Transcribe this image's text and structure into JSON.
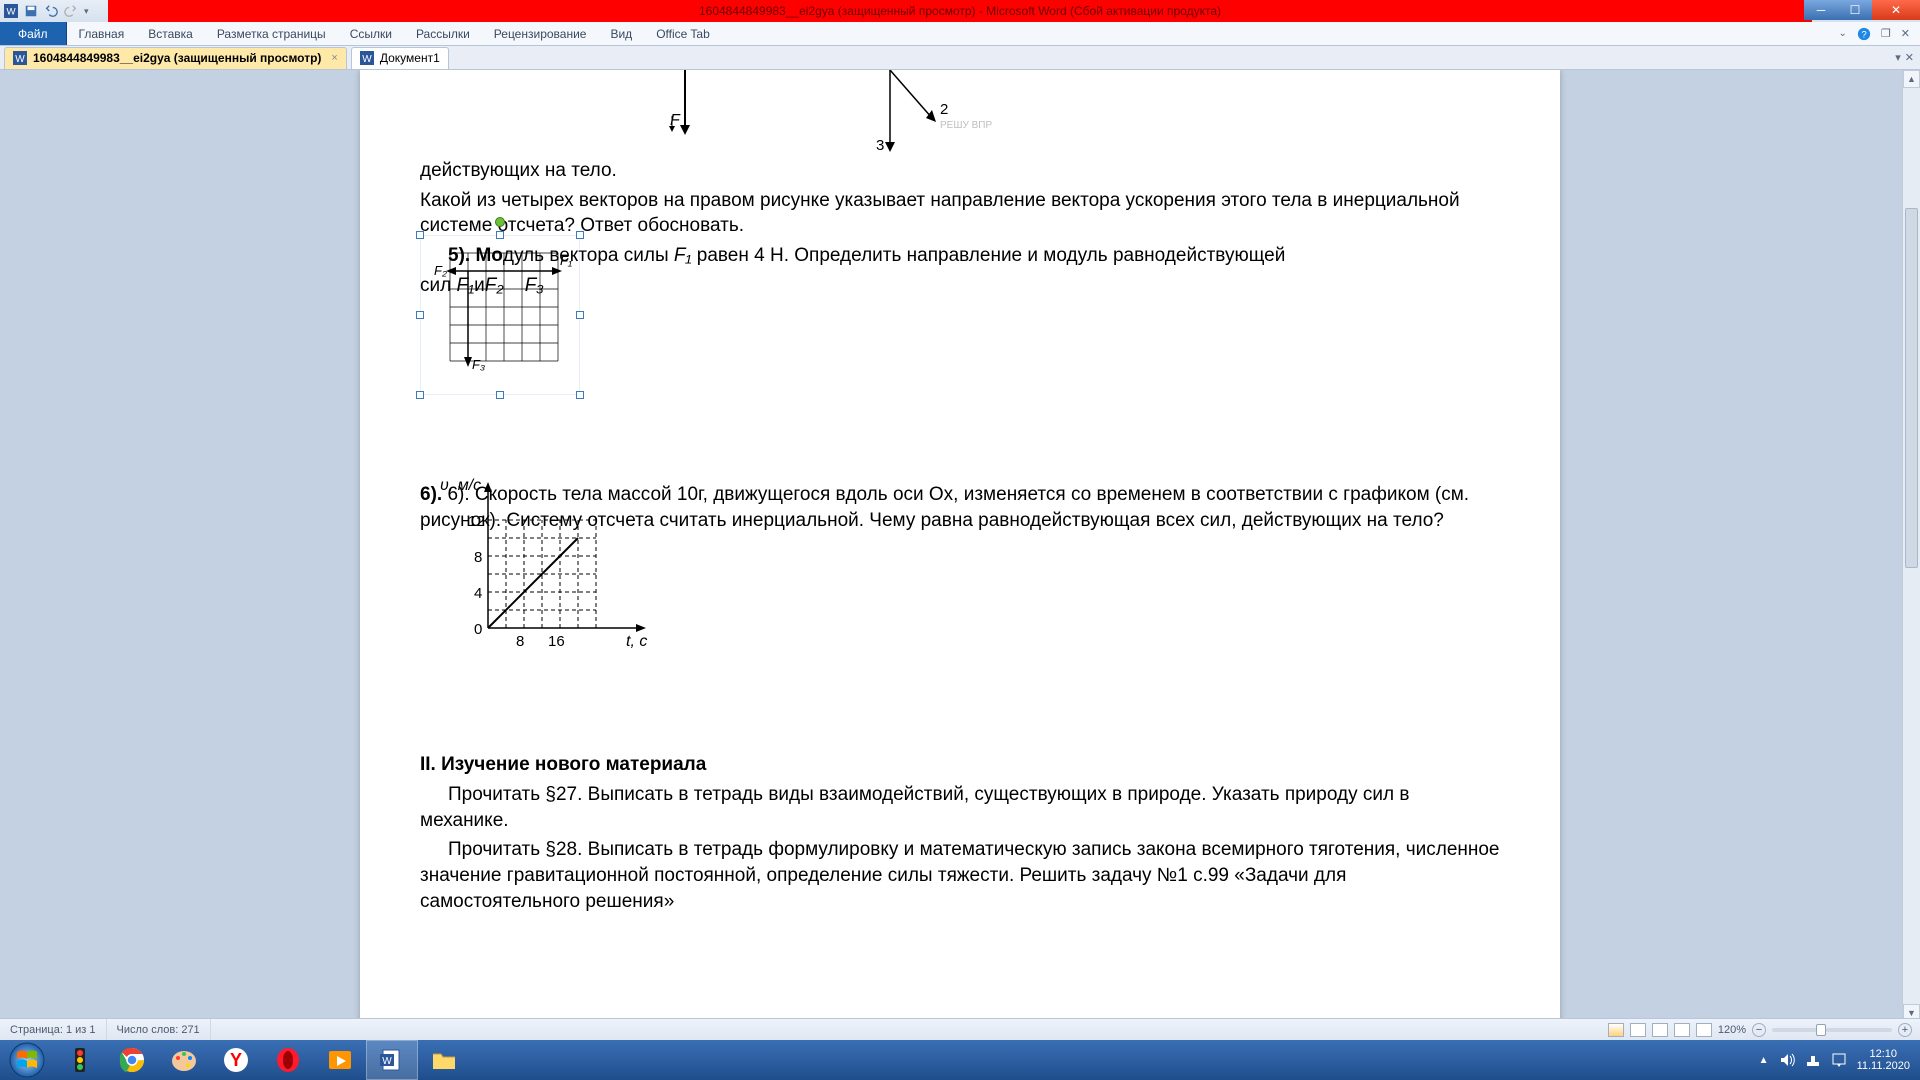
{
  "titlebar": {
    "title": "1604844849983__ei2gya (защищенный просмотр) - Microsoft Word (Сбой активации продукта)"
  },
  "ribbon": {
    "file": "Файл",
    "tabs": [
      "Главная",
      "Вставка",
      "Разметка страницы",
      "Ссылки",
      "Рассылки",
      "Рецензирование",
      "Вид",
      "Office Tab"
    ]
  },
  "doctabs": {
    "tab1": "1604844849983__ei2gya (защищенный просмотр)",
    "tab2": "Документ1"
  },
  "content": {
    "p1": "действующих на тело.",
    "p2": "Какой из четырех векторов на правом рисунке указывает направление вектора ускорения этого тела в инерциальной системе отсчета? Ответ обосновать.",
    "p3a": "5). Мо",
    "p3b": "дуль вектора силы ",
    "p3c": " равен 4 Н. Определить направление и модуль равнодействующей",
    "p3_f1": "F₁",
    "p4a": "сил ",
    "p4_f1": "F₁",
    "p4_f2": "F₂",
    "p4_and": "и",
    "p4_f3": "F₃",
    "p6": "6). Скорость тела массой 10г, движущегося вдоль оси Оx, изменяется со временем в соответствии с графиком (см. рисунок). Систему отсчета считать инерциальной. Чему равна равнодействующая всех сил, действующих на тело?",
    "h2": "II. Изучение нового материала",
    "p7": "Прочитать §27. Выписать в тетрадь виды взаимодействий, существующих в природе. Указать природу сил в механике.",
    "p8": "Прочитать §28. Выписать в тетрадь формулировку и математическую запись закона всемирного тяготения, численное значение гравитационной постоянной, определение силы тяжести. Решить задачу №1 с.99 «Задачи для самостоятельного решения»"
  },
  "fig_top": {
    "label_F": "F",
    "label_2": "2",
    "label_3": "3",
    "watermark": "РЕШУ ВПР"
  },
  "fig5": {
    "F1": "F₁",
    "F2": "F₂",
    "F3": "F₃",
    "grid_color": "#000000",
    "cols": 6,
    "rows": 6,
    "cell": 18
  },
  "graph6": {
    "ylabel": "υ, м/с",
    "xlabel": "t, с",
    "yticks": [
      "12",
      "8",
      "4"
    ],
    "xorigin": "0",
    "xticks": [
      "8",
      "16"
    ],
    "grid_cols": 6,
    "grid_rows": 6,
    "cell": 18,
    "line_color": "#000000",
    "dash_color": "#000000"
  },
  "status": {
    "page": "Страница: 1 из 1",
    "words": "Число слов: 271",
    "zoom": "120%"
  },
  "tray": {
    "time": "12:10",
    "date": "11.11.2020"
  }
}
